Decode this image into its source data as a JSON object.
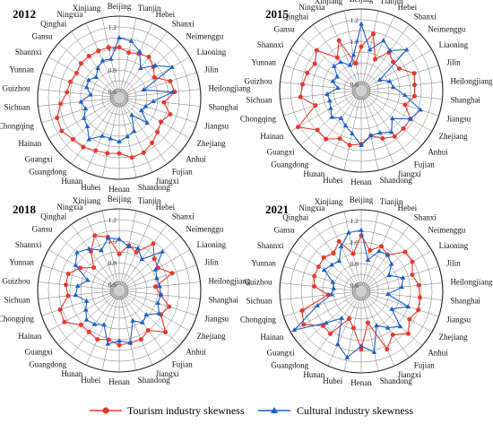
{
  "chart_data": [
    {
      "type": "radar",
      "title": "2012",
      "categories": [
        "Beijing",
        "Tianjin",
        "Hebei",
        "Shanxi",
        "Neimenggu",
        "Liaoning",
        "Jilin",
        "Heilongjiang",
        "Shanghai",
        "Jiangsu",
        "Zhejiang",
        "Anhui",
        "Fujian",
        "Jiangxi",
        "Shandong",
        "Henan",
        "Hubei",
        "Hunan",
        "Guangdong",
        "Guangxi",
        "Hainan",
        "Chongqing",
        "Sichuan",
        "Guizhou",
        "Yunnan",
        "Shannxi",
        "Gansu",
        "Qinghai",
        "Ningxia",
        "Xinjiang"
      ],
      "ticks": [
        "0.6",
        "0.8",
        "1.0",
        "1.2"
      ],
      "rlim": [
        0.6,
        1.3
      ],
      "series": [
        {
          "name": "Tourism industry skewness",
          "values": [
            1.01,
            0.97,
            0.99,
            1.01,
            0.97,
            0.92,
            1.04,
            1.06,
            0.96,
            1.04,
            0.99,
            1.02,
            1.06,
            1.1,
            1.11,
            1.06,
            1.07,
            1.08,
            1.11,
            1.12,
            1.16,
            1.15,
            1.09,
            1.03,
            1.02,
            1.0,
            1.02,
            1.02,
            1.02,
            1.02
          ]
        },
        {
          "name": "Cultural industry skewness",
          "values": [
            1.1,
            1.08,
            1.01,
            0.88,
            0.99,
            1.11,
            0.78,
            1.04,
            0.86,
            0.8,
            0.78,
            0.89,
            0.74,
            0.88,
            0.91,
            0.95,
            0.93,
            0.93,
            1.02,
            0.94,
            0.92,
            0.87,
            0.9,
            0.81,
            0.86,
            0.87,
            0.83,
            0.88,
            0.92,
            0.91
          ]
        }
      ]
    },
    {
      "type": "radar",
      "title": "2015",
      "categories": [
        "Beijing",
        "Tianjin",
        "Hebei",
        "Shanxi",
        "Neimenggu",
        "Liaoning",
        "Jilin",
        "Heilongjiang",
        "Shanghai",
        "Jiangsu",
        "Zhejiang",
        "Anhui",
        "Fujian",
        "Jiangxi",
        "Shandong",
        "Henan",
        "Hubei",
        "Hunan",
        "Guangdong",
        "Guangxi",
        "Hainan",
        "Chongqing",
        "Sichuan",
        "Guizhou",
        "Yunnan",
        "Shannxi",
        "Gansu",
        "Qinghai",
        "Ningxia",
        "Xinjiang"
      ],
      "ticks": [
        "0.6",
        "0.8",
        "1.0",
        "1.2"
      ],
      "rlim": [
        0.6,
        1.3
      ],
      "series": [
        {
          "name": "Tourism industry skewness",
          "values": [
            0.95,
            1.08,
            0.86,
            0.98,
            0.94,
            0.95,
            1.06,
            1.04,
            1.04,
            0.97,
            1.07,
            1.07,
            1.07,
            1.03,
            0.97,
            1.04,
            1.06,
            1.03,
            1.1,
            1.09,
            1.22,
            0.99,
            1.11,
            1.09,
            1.07,
            1.04,
            1.1,
            0.92,
            1.05,
            0.8
          ]
        },
        {
          "name": "Cultural industry skewness",
          "values": [
            1.16,
            0.93,
            1.05,
            1.0,
            1.11,
            0.74,
            0.82,
            0.84,
            0.95,
            1.12,
            1.07,
            0.93,
            1.02,
            0.97,
            0.97,
            1.05,
            0.95,
            0.9,
            0.86,
            0.91,
            0.87,
            0.85,
            0.86,
            0.76,
            0.82,
            0.8,
            0.88,
            0.87,
            0.8,
            0.88
          ]
        }
      ]
    },
    {
      "type": "radar",
      "title": "2018",
      "categories": [
        "Beijing",
        "Tianjin",
        "Hebei",
        "Shanxi",
        "Neimenggu",
        "Liaoning",
        "Jilin",
        "Heilongjiang",
        "Shanghai",
        "Jiangsu",
        "Zhejiang",
        "Anhui",
        "Fujian",
        "Jiangxi",
        "Shandong",
        "Henan",
        "Hubei",
        "Hunan",
        "Guangdong",
        "Guangxi",
        "Hainan",
        "Chongqing",
        "Sichuan",
        "Guizhou",
        "Yunnan",
        "Shannxi",
        "Gansu",
        "Qinghai",
        "Ningxia",
        "Xinjiang"
      ],
      "ticks": [
        "0.6",
        "0.8",
        "1.0",
        "1.2"
      ],
      "rlim": [
        0.6,
        1.3
      ],
      "series": [
        {
          "name": "Tourism industry skewness",
          "values": [
            0.88,
            0.97,
            0.93,
            1.08,
            0.98,
            0.96,
            1.06,
            0.88,
            0.93,
            1.03,
            0.99,
            1.12,
            1.0,
            1.04,
            1.04,
            1.05,
            1.01,
            1.04,
            1.02,
            1.02,
            1.13,
            1.12,
            1.02,
            1.04,
            1.04,
            0.96,
            0.86,
            0.99,
            1.1,
            1.05
          ]
        },
        {
          "name": "Cultural industry skewness",
          "values": [
            1.02,
            0.96,
            0.97,
            0.9,
            1.08,
            0.93,
            0.91,
            0.92,
            0.93,
            0.92,
            0.97,
            0.88,
            0.91,
            0.85,
            1.04,
            1.01,
            1.05,
            0.89,
            0.93,
            0.95,
            0.9,
            0.86,
            0.95,
            0.93,
            0.85,
            1.01,
            1.07,
            1.02,
            0.95,
            1.04
          ]
        }
      ]
    },
    {
      "type": "radar",
      "title": "2021",
      "categories": [
        "Beijing",
        "Tianjin",
        "Hebei",
        "Shanxi",
        "Neimenggu",
        "Liaoning",
        "Jilin",
        "Heilongjiang",
        "Shanghai",
        "Jiangsu",
        "Zhejiang",
        "Anhui",
        "Fujian",
        "Jiangxi",
        "Shandong",
        "Henan",
        "Hubei",
        "Hunan",
        "Guangdong",
        "Guangxi",
        "Hainan",
        "Chongqing",
        "Sichuan",
        "Guizhou",
        "Yunnan",
        "Shannxi",
        "Gansu",
        "Qinghai",
        "Ningxia",
        "Xinjiang"
      ],
      "ticks": [
        "0.6",
        "0.8",
        "1.0",
        "1.2"
      ],
      "rlim": [
        0.6,
        1.3
      ],
      "series": [
        {
          "name": "Tourism industry skewness",
          "values": [
            1.06,
            0.93,
            1.0,
            0.96,
            1.09,
            1.09,
            1.04,
            1.08,
            1.09,
            1.1,
            1.06,
            1.13,
            1.04,
            1.13,
            0.84,
            1.08,
            0.89,
            0.82,
            1.03,
            1.02,
            1.16,
            1.12,
            0.85,
            0.98,
            1.0,
            1.0,
            1.01,
            0.98,
            1.05,
            0.9
          ]
        },
        {
          "name": "Cultural industry skewness",
          "values": [
            1.11,
            0.84,
            0.95,
            0.96,
            0.92,
            0.84,
            0.95,
            0.92,
            0.79,
            1.0,
            0.87,
            1.03,
            0.96,
            0.89,
            1.12,
            1.05,
            1.17,
            1.08,
            0.85,
            0.98,
            1.26,
            0.97,
            0.82,
            0.8,
            0.82,
            0.94,
            0.91,
            0.89,
            1.0,
            1.1
          ]
        }
      ]
    }
  ],
  "legend": {
    "tourism_label": "Tourism industry skewness",
    "cultural_label": "Cultural industry skewness",
    "placement": "bottom"
  },
  "colors": {
    "tourism": "#e8382f",
    "cultural": "#1f5fc8",
    "grid": "#777777",
    "center_fill": "#cfcfcf"
  }
}
